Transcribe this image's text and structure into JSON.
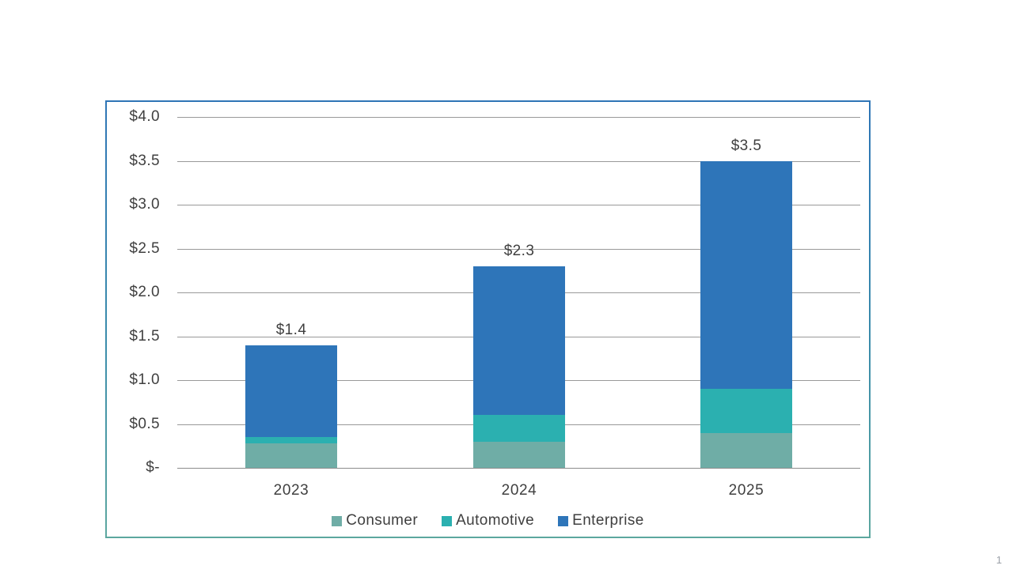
{
  "page": {
    "page_number": "1"
  },
  "chart_data": {
    "type": "bar",
    "stacked": true,
    "title": "",
    "categories": [
      "2023",
      "2024",
      "2025"
    ],
    "series": [
      {
        "name": "Consumer",
        "color": "#6fada6",
        "values": [
          0.28,
          0.3,
          0.4
        ]
      },
      {
        "name": "Automotive",
        "color": "#2bb0b0",
        "values": [
          0.07,
          0.3,
          0.5
        ]
      },
      {
        "name": "Enterprise",
        "color": "#2e75b9",
        "values": [
          1.05,
          1.7,
          2.6
        ]
      }
    ],
    "totals": [
      1.4,
      2.3,
      3.5
    ],
    "total_labels": [
      "$1.4",
      "$2.3",
      "$3.5"
    ],
    "y_ticks": [
      {
        "label": "$4.0",
        "value": 4.0
      },
      {
        "label": "$3.5",
        "value": 3.5
      },
      {
        "label": "$3.0",
        "value": 3.0
      },
      {
        "label": "$2.5",
        "value": 2.5
      },
      {
        "label": "$2.0",
        "value": 2.0
      },
      {
        "label": "$1.5",
        "value": 1.5
      },
      {
        "label": "$1.0",
        "value": 1.0
      },
      {
        "label": "$0.5",
        "value": 0.5
      },
      {
        "label": "$-",
        "value": 0.0
      }
    ],
    "ylim": [
      0,
      4
    ],
    "grid": true,
    "legend_position": "bottom",
    "frame_border_top_color": "#2e75b6",
    "frame_border_bottom_color": "#5ca79f",
    "gridline_color": "#999999",
    "text_color": "#404040"
  }
}
